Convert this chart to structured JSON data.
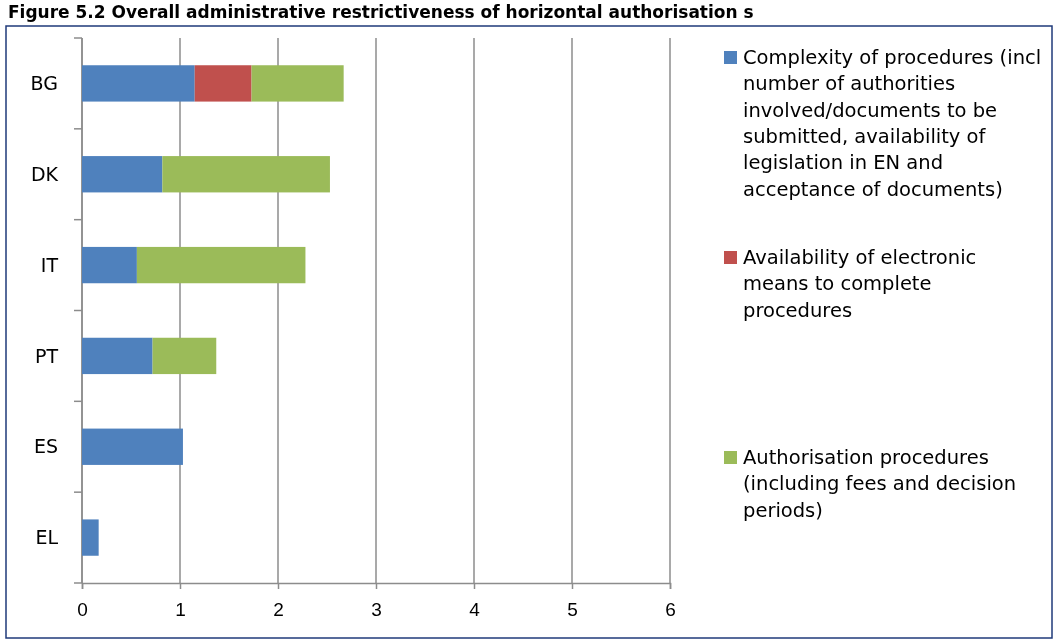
{
  "chart_data": {
    "type": "bar",
    "orientation": "horizontal",
    "stacked": true,
    "title": "Figure 5.2 Overall administrative restrictiveness of horizontal authorisation s",
    "categories": [
      "BG",
      "DK",
      "IT",
      "PT",
      "ES",
      "EL"
    ],
    "series": [
      {
        "name": "Complexity of procedures (incl number of authorities involved/documents to be submitted, availability of legislation in EN and acceptance of documents)",
        "color": "#4f81bd",
        "values": [
          1.15,
          0.82,
          0.56,
          0.72,
          1.03,
          0.17
        ]
      },
      {
        "name": "Availability of electronic means to complete procedures",
        "color": "#c0504d",
        "values": [
          0.58,
          null,
          null,
          null,
          null,
          null
        ]
      },
      {
        "name": "Authorisation procedures (including fees and decision periods)",
        "color": "#9bbb59",
        "values": [
          0.94,
          1.71,
          1.72,
          0.65,
          null,
          null
        ]
      }
    ],
    "xlim": [
      0,
      6
    ],
    "xticks": [
      0,
      1,
      2,
      3,
      4,
      5,
      6
    ],
    "grid": "x",
    "legend": "right"
  }
}
